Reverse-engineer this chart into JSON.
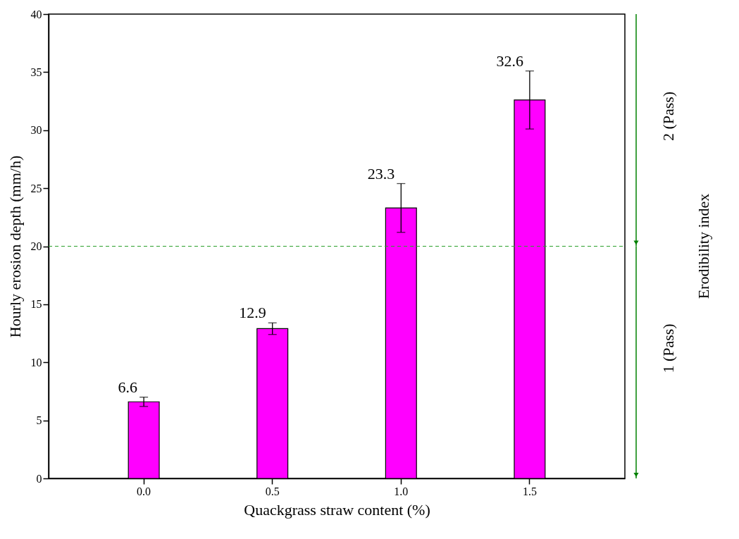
{
  "chart_data": {
    "type": "bar",
    "xlabel": "Quackgrass straw content (%)",
    "ylabel": "Hourly erosion depth (mm/h)",
    "y2label": "Erodibility index",
    "categories": [
      "0.0",
      "0.5",
      "1.0",
      "1.5"
    ],
    "values": [
      6.6,
      12.9,
      23.3,
      32.6
    ],
    "errors": [
      0.4,
      0.5,
      2.1,
      2.5
    ],
    "color": "#ff00ff",
    "data_labels": true,
    "ylim": [
      0,
      40
    ],
    "yticks": [
      0,
      5,
      10,
      15,
      20,
      25,
      30,
      35,
      40
    ],
    "grid": false,
    "ref_lines": [
      {
        "axis": "y",
        "value": 20,
        "color": "#2ca02c",
        "line_style": "dashed"
      }
    ],
    "annotations": [
      "2 (Pass)",
      "1 (Pass)"
    ]
  }
}
